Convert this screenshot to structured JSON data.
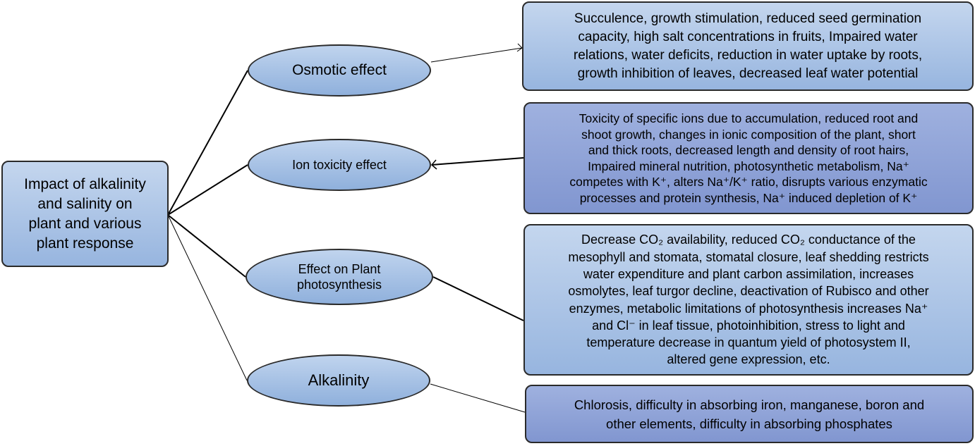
{
  "root": {
    "lines": [
      "Impact of alkalinity",
      "and salinity on",
      "plant and various",
      "plant response"
    ]
  },
  "branches": [
    {
      "label": [
        "Osmotic effect"
      ],
      "description": [
        "Succulence, growth stimulation, reduced seed germination",
        "capacity, high salt concentrations in fruits, Impaired water",
        "relations, water deficits, reduction in water uptake by roots,",
        "growth inhibition of leaves, decreased leaf water potential"
      ]
    },
    {
      "label": [
        "Ion toxicity effect"
      ],
      "description": [
        "Toxicity of specific ions due to accumulation, reduced root and",
        "shoot growth, changes in ionic composition of the plant, short",
        "and thick roots, decreased length and density of root hairs,",
        "Impaired mineral nutrition, photosynthetic metabolism, Na⁺",
        "competes with K⁺, alters Na⁺/K⁺ ratio, disrupts various enzymatic",
        "processes and protein synthesis, Na⁺ induced depletion of K⁺"
      ]
    },
    {
      "label": [
        "Effect on Plant",
        "photosynthesis"
      ],
      "description": [
        "Decrease CO₂ availability, reduced CO₂ conductance of the",
        "mesophyll and stomata, stomatal closure, leaf shedding restricts",
        "water expenditure and plant carbon assimilation, increases",
        "osmolytes, leaf turgor decline, deactivation of Rubisco and other",
        "enzymes, metabolic limitations of photosynthesis increases Na⁺",
        "and Cl⁻ in leaf tissue, photoinhibition, stress to light and",
        "temperature decrease in quantum yield of photosystem II,",
        "altered gene expression, etc."
      ]
    },
    {
      "label": [
        "Alkalinity"
      ],
      "description": [
        "Chlorosis, difficulty in absorbing iron, manganese, boron and",
        "other elements, difficulty in absorbing phosphates"
      ]
    }
  ]
}
